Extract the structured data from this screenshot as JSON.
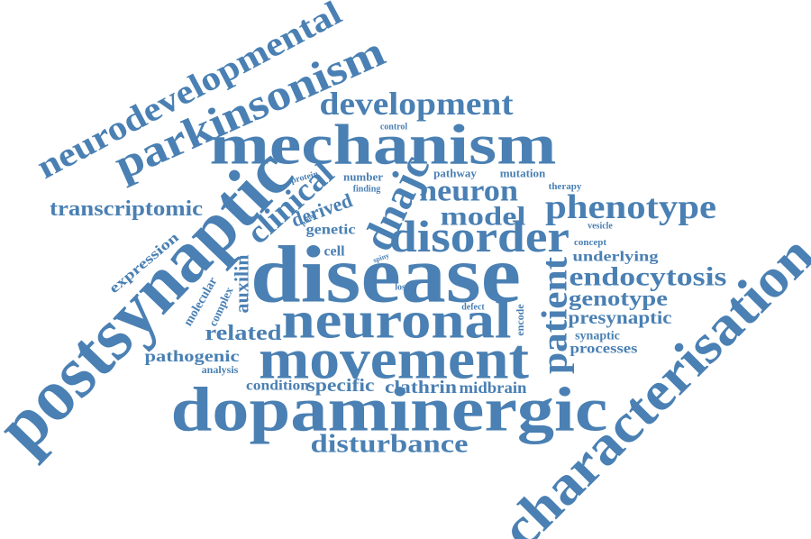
{
  "words": [
    "neurodevelopmental",
    "parkinsonism",
    "development",
    "control",
    "mechanism",
    "postsynaptic",
    "transcriptomic",
    "clinical",
    "protein",
    "number",
    "finding",
    "pathway",
    "mutation",
    "therapy",
    "neuron",
    "phenotype",
    "derived",
    "proof",
    "dnajc",
    "model",
    "genetic",
    "vesicle",
    "disorder",
    "expression",
    "cell",
    "concept",
    "spiny",
    "underlying",
    "disease",
    "molecular",
    "auxilin",
    "complex",
    "endocytosis",
    "loss",
    "patient",
    "genotype",
    "defect",
    "encode",
    "neuronal",
    "presynaptic",
    "related",
    "synaptic",
    "processes",
    "pathogenic",
    "analysis",
    "movement",
    "condition",
    "specific",
    "clathrin",
    "midbrain",
    "dopaminergic",
    "characterisation",
    "disturbance"
  ]
}
